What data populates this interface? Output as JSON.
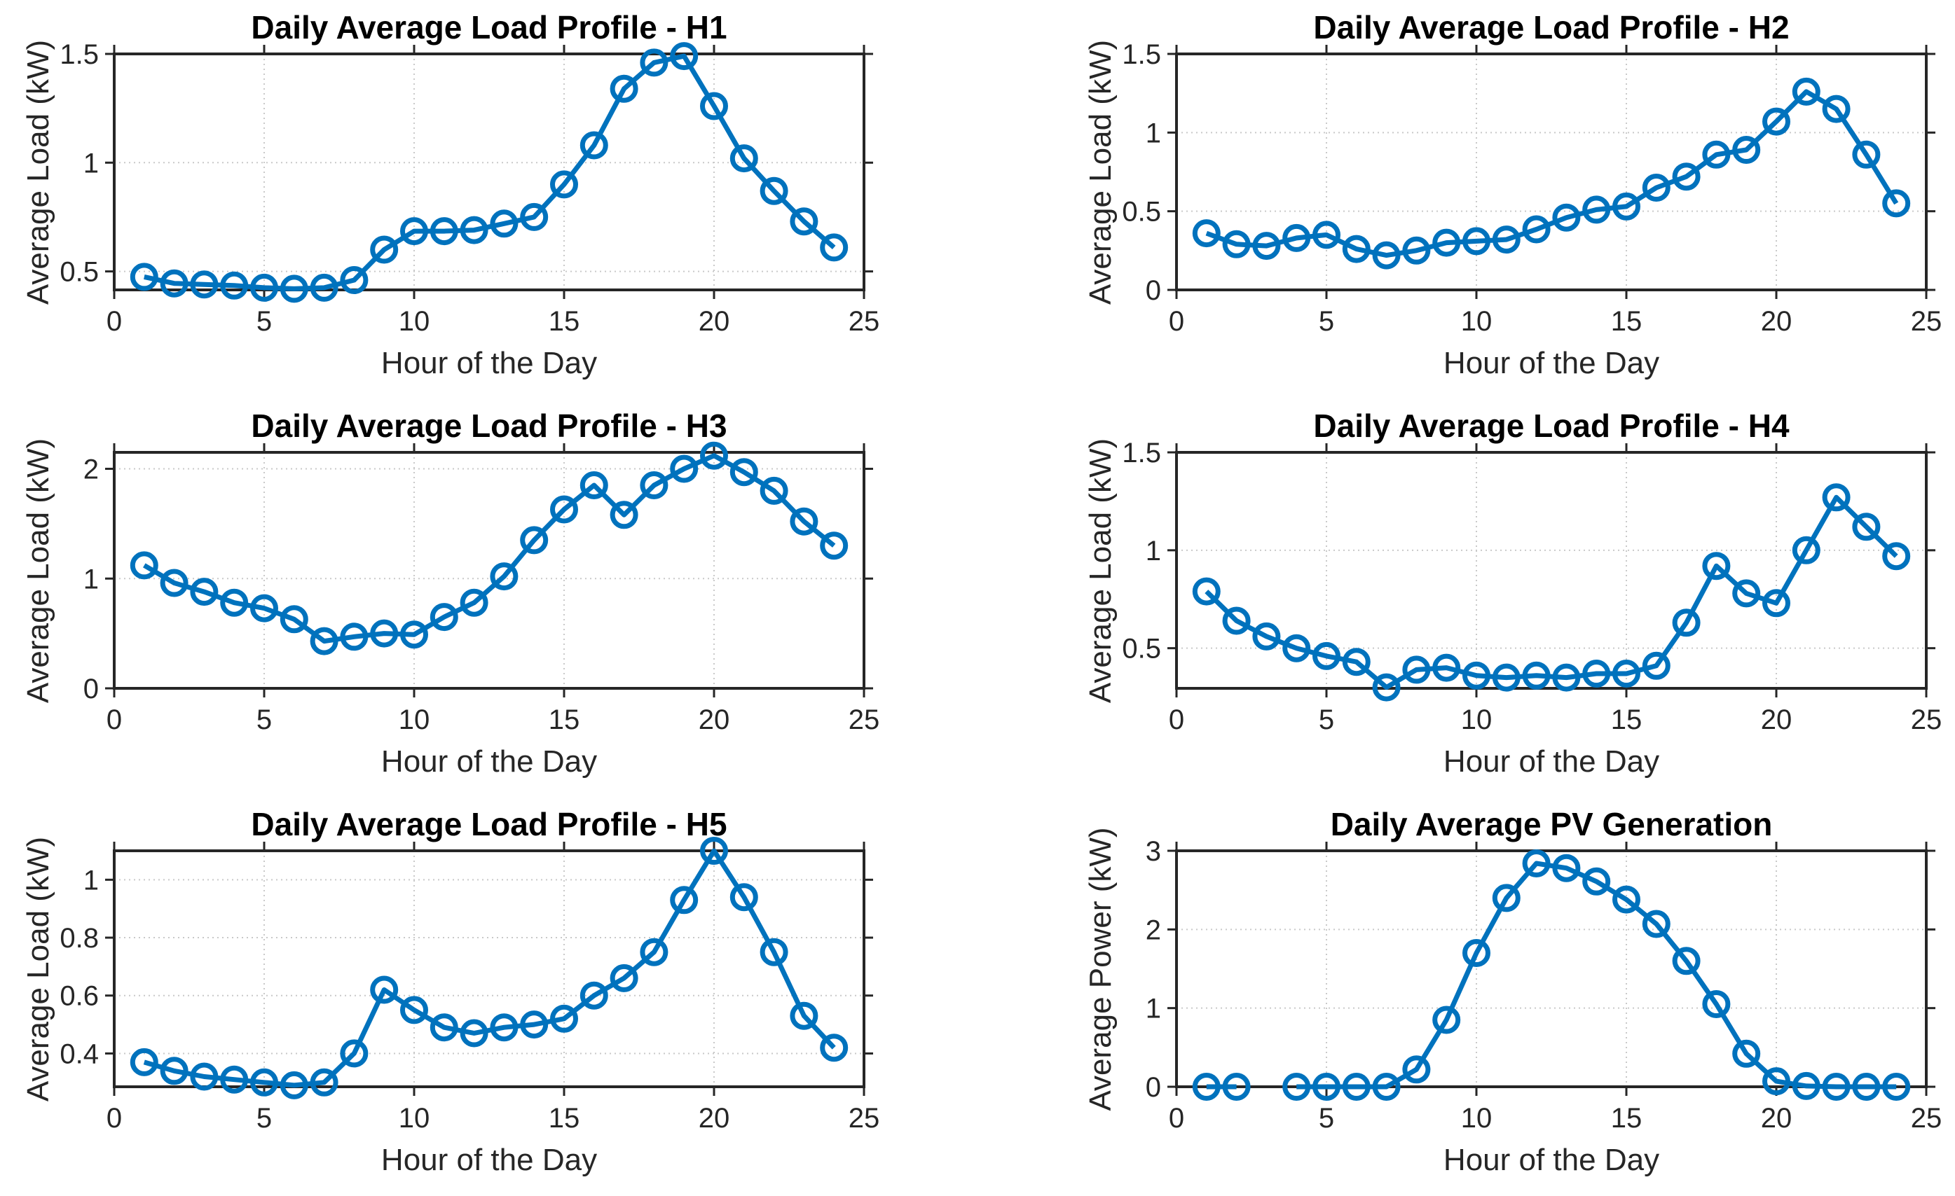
{
  "figure": {
    "background": "#ffffff",
    "colors": {
      "line": "#0072BD",
      "axis": "#262626",
      "grid": "#c9c9c9",
      "title": "#000000",
      "tick_text": "#262626"
    }
  },
  "chart_data": [
    {
      "type": "line",
      "title": "Daily Average Load Profile - H1",
      "xlabel": "Hour of the Day",
      "ylabel": "Average Load (kW)",
      "xlim": [
        0,
        25
      ],
      "ylim": [
        0.415,
        1.5
      ],
      "xticks": [
        0,
        5,
        10,
        15,
        20,
        25
      ],
      "yticks": [
        0.5,
        1,
        1.5
      ],
      "grid": true,
      "legend": false,
      "marker": "o",
      "line_color": "#0072BD",
      "x": [
        1,
        2,
        3,
        4,
        5,
        6,
        7,
        8,
        9,
        10,
        11,
        12,
        13,
        14,
        15,
        16,
        17,
        18,
        19,
        20,
        21,
        22,
        23,
        24
      ],
      "values": [
        0.475,
        0.445,
        0.44,
        0.435,
        0.425,
        0.42,
        0.425,
        0.46,
        0.6,
        0.685,
        0.685,
        0.69,
        0.72,
        0.75,
        0.9,
        1.08,
        1.34,
        1.46,
        1.49,
        1.26,
        1.02,
        0.87,
        0.73,
        0.61
      ]
    },
    {
      "type": "line",
      "title": "Daily Average Load Profile - H2",
      "xlabel": "Hour of the Day",
      "ylabel": "Average Load (kW)",
      "xlim": [
        0,
        25
      ],
      "ylim": [
        0,
        1.5
      ],
      "xticks": [
        0,
        5,
        10,
        15,
        20,
        25
      ],
      "yticks": [
        0,
        0.5,
        1,
        1.5
      ],
      "grid": true,
      "legend": false,
      "marker": "o",
      "line_color": "#0072BD",
      "x": [
        1,
        2,
        3,
        4,
        5,
        6,
        7,
        8,
        9,
        10,
        11,
        12,
        13,
        14,
        15,
        16,
        17,
        18,
        19,
        20,
        21,
        22,
        23,
        24
      ],
      "values": [
        0.36,
        0.29,
        0.28,
        0.33,
        0.35,
        0.26,
        0.22,
        0.25,
        0.3,
        0.31,
        0.32,
        0.385,
        0.46,
        0.51,
        0.53,
        0.65,
        0.72,
        0.86,
        0.89,
        1.07,
        1.26,
        1.15,
        0.86,
        0.55
      ]
    },
    {
      "type": "line",
      "title": "Daily Average Load Profile - H3",
      "xlabel": "Hour of the Day",
      "ylabel": "Average Load (kW)",
      "xlim": [
        0,
        25
      ],
      "ylim": [
        0,
        2.15
      ],
      "xticks": [
        0,
        5,
        10,
        15,
        20,
        25
      ],
      "yticks": [
        0,
        1,
        2
      ],
      "grid": true,
      "legend": false,
      "marker": "o",
      "line_color": "#0072BD",
      "x": [
        1,
        2,
        3,
        4,
        5,
        6,
        7,
        8,
        9,
        10,
        11,
        12,
        13,
        14,
        15,
        16,
        17,
        18,
        19,
        20,
        21,
        22,
        23,
        24
      ],
      "values": [
        1.12,
        0.96,
        0.88,
        0.78,
        0.73,
        0.63,
        0.43,
        0.47,
        0.5,
        0.49,
        0.65,
        0.78,
        1.02,
        1.35,
        1.63,
        1.85,
        1.58,
        1.85,
        2.0,
        2.12,
        1.97,
        1.8,
        1.52,
        1.3
      ]
    },
    {
      "type": "line",
      "title": "Daily Average Load Profile - H4",
      "xlabel": "Hour of the Day",
      "ylabel": "Average Load (kW)",
      "xlim": [
        0,
        25
      ],
      "ylim": [
        0.295,
        1.5
      ],
      "xticks": [
        0,
        5,
        10,
        15,
        20,
        25
      ],
      "yticks": [
        0.5,
        1,
        1.5
      ],
      "grid": true,
      "legend": false,
      "marker": "o",
      "line_color": "#0072BD",
      "x": [
        1,
        2,
        3,
        4,
        5,
        6,
        7,
        8,
        9,
        10,
        11,
        12,
        13,
        14,
        15,
        16,
        17,
        18,
        19,
        20,
        21,
        22,
        23,
        24
      ],
      "values": [
        0.79,
        0.64,
        0.56,
        0.5,
        0.46,
        0.43,
        0.3,
        0.39,
        0.4,
        0.36,
        0.35,
        0.36,
        0.35,
        0.37,
        0.37,
        0.41,
        0.63,
        0.92,
        0.78,
        0.73,
        1.0,
        1.27,
        1.12,
        0.97
      ]
    },
    {
      "type": "line",
      "title": "Daily Average Load Profile - H5",
      "xlabel": "Hour of the Day",
      "ylabel": "Average Load (kW)",
      "xlim": [
        0,
        25
      ],
      "ylim": [
        0.285,
        1.1
      ],
      "xticks": [
        0,
        5,
        10,
        15,
        20,
        25
      ],
      "yticks": [
        0.4,
        0.6,
        0.8,
        1
      ],
      "grid": true,
      "legend": false,
      "marker": "o",
      "line_color": "#0072BD",
      "x": [
        1,
        2,
        3,
        4,
        5,
        6,
        7,
        8,
        9,
        10,
        11,
        12,
        13,
        14,
        15,
        16,
        17,
        18,
        19,
        20,
        21,
        22,
        23,
        24
      ],
      "values": [
        0.37,
        0.34,
        0.32,
        0.31,
        0.3,
        0.29,
        0.3,
        0.4,
        0.62,
        0.55,
        0.49,
        0.47,
        0.49,
        0.5,
        0.52,
        0.6,
        0.66,
        0.75,
        0.93,
        1.1,
        0.94,
        0.75,
        0.53,
        0.42
      ]
    },
    {
      "type": "line",
      "title": "Daily Average PV Generation",
      "xlabel": "Hour of the Day",
      "ylabel": "Average Power (kW)",
      "xlim": [
        0,
        25
      ],
      "ylim": [
        0,
        3
      ],
      "xticks": [
        0,
        5,
        10,
        15,
        20,
        25
      ],
      "yticks": [
        0,
        1,
        2,
        3
      ],
      "grid": true,
      "legend": false,
      "marker": "o",
      "line_color": "#0072BD",
      "x": [
        1,
        2,
        3,
        4,
        5,
        6,
        7,
        8,
        9,
        10,
        11,
        12,
        13,
        14,
        15,
        16,
        17,
        18,
        19,
        20,
        21,
        22,
        23,
        24
      ],
      "values": [
        0,
        0,
        null,
        0,
        0,
        0,
        0,
        0.22,
        0.85,
        1.7,
        2.4,
        2.84,
        2.78,
        2.61,
        2.38,
        2.07,
        1.6,
        1.05,
        0.42,
        0.07,
        0.01,
        0,
        0,
        0
      ]
    }
  ]
}
